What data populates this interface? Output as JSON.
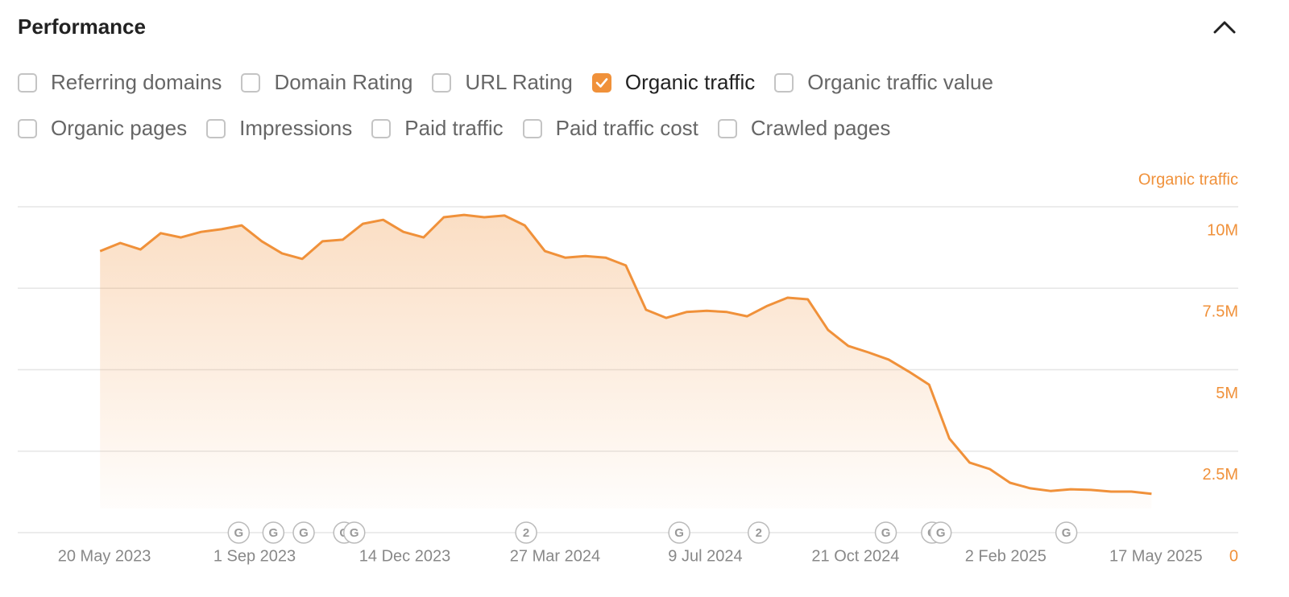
{
  "header": {
    "title": "Performance"
  },
  "metrics": [
    [
      {
        "label": "Referring domains",
        "checked": false
      },
      {
        "label": "Domain Rating",
        "checked": false
      },
      {
        "label": "URL Rating",
        "checked": false
      },
      {
        "label": "Organic traffic",
        "checked": true
      },
      {
        "label": "Organic traffic value",
        "checked": false
      }
    ],
    [
      {
        "label": "Organic pages",
        "checked": false
      },
      {
        "label": "Impressions",
        "checked": false
      },
      {
        "label": "Paid traffic",
        "checked": false
      },
      {
        "label": "Paid traffic cost",
        "checked": false
      },
      {
        "label": "Crawled pages",
        "checked": false
      }
    ]
  ],
  "chart_data": {
    "type": "area",
    "x": [
      "2023-05-17",
      "2023-05-31",
      "2023-06-14",
      "2023-06-28",
      "2023-07-12",
      "2023-07-26",
      "2023-08-09",
      "2023-08-23",
      "2023-09-06",
      "2023-09-20",
      "2023-10-04",
      "2023-10-18",
      "2023-11-01",
      "2023-11-15",
      "2023-11-29",
      "2023-12-13",
      "2023-12-27",
      "2024-01-10",
      "2024-01-24",
      "2024-02-07",
      "2024-02-21",
      "2024-03-06",
      "2024-03-20",
      "2024-04-03",
      "2024-04-17",
      "2024-05-01",
      "2024-05-15",
      "2024-05-29",
      "2024-06-12",
      "2024-06-26",
      "2024-07-10",
      "2024-07-24",
      "2024-08-07",
      "2024-08-21",
      "2024-09-04",
      "2024-09-18",
      "2024-10-02",
      "2024-10-16",
      "2024-10-30",
      "2024-11-13",
      "2024-11-27",
      "2024-12-11",
      "2024-12-25",
      "2025-01-08",
      "2025-01-22",
      "2025-02-05",
      "2025-02-19",
      "2025-03-05",
      "2025-03-19",
      "2025-04-02",
      "2025-04-16",
      "2025-04-30",
      "2025-05-14"
    ],
    "series": [
      {
        "name": "Organic traffic",
        "color": "#f0913a",
        "values": [
          8640000,
          8890000,
          8690000,
          9190000,
          9060000,
          9230000,
          9310000,
          9430000,
          8940000,
          8570000,
          8400000,
          8940000,
          8990000,
          9480000,
          9600000,
          9230000,
          9060000,
          9680000,
          9750000,
          9680000,
          9730000,
          9430000,
          8640000,
          8440000,
          8490000,
          8440000,
          8200000,
          6840000,
          6590000,
          6770000,
          6810000,
          6770000,
          6640000,
          6960000,
          7210000,
          7160000,
          6220000,
          5730000,
          5530000,
          5310000,
          4940000,
          4540000,
          2890000,
          2150000,
          1950000,
          1530000,
          1360000,
          1280000,
          1330000,
          1310000,
          1260000,
          1260000,
          1190000
        ]
      }
    ],
    "xlim": [
      "2023-03-21",
      "2025-07-13"
    ],
    "xticks": [
      {
        "value": "2023-05-20",
        "label": "20 May 2023"
      },
      {
        "value": "2023-09-01",
        "label": "1 Sep 2023"
      },
      {
        "value": "2023-12-14",
        "label": "14 Dec 2023"
      },
      {
        "value": "2024-03-27",
        "label": "27 Mar 2024"
      },
      {
        "value": "2024-07-09",
        "label": "9 Jul 2024"
      },
      {
        "value": "2024-10-21",
        "label": "21 Oct 2024"
      },
      {
        "value": "2025-02-02",
        "label": "2 Feb 2025"
      },
      {
        "value": "2025-05-17",
        "label": "17 May 2025"
      }
    ],
    "ylim": [
      0,
      10000000
    ],
    "yticks": [
      0,
      {
        "value": 2500000,
        "label": "2.5M"
      },
      {
        "value": 5000000,
        "label": "5M"
      },
      {
        "value": 7500000,
        "label": "7.5M"
      },
      {
        "value": 10000000,
        "label": "10M"
      }
    ],
    "grid": true,
    "events": [
      {
        "x": "2023-08-21",
        "label": "G"
      },
      {
        "x": "2023-09-14",
        "label": "G"
      },
      {
        "x": "2023-10-05",
        "label": "G"
      },
      {
        "x": "2023-11-02",
        "label": "G"
      },
      {
        "x": "2023-11-09",
        "label": "G"
      },
      {
        "x": "2024-03-07",
        "label": "2"
      },
      {
        "x": "2024-06-21",
        "label": "G"
      },
      {
        "x": "2024-08-15",
        "label": "2"
      },
      {
        "x": "2024-11-11",
        "label": "G"
      },
      {
        "x": "2024-12-13",
        "label": "G"
      },
      {
        "x": "2024-12-19",
        "label": "G"
      },
      {
        "x": "2025-03-16",
        "label": "G"
      }
    ]
  }
}
